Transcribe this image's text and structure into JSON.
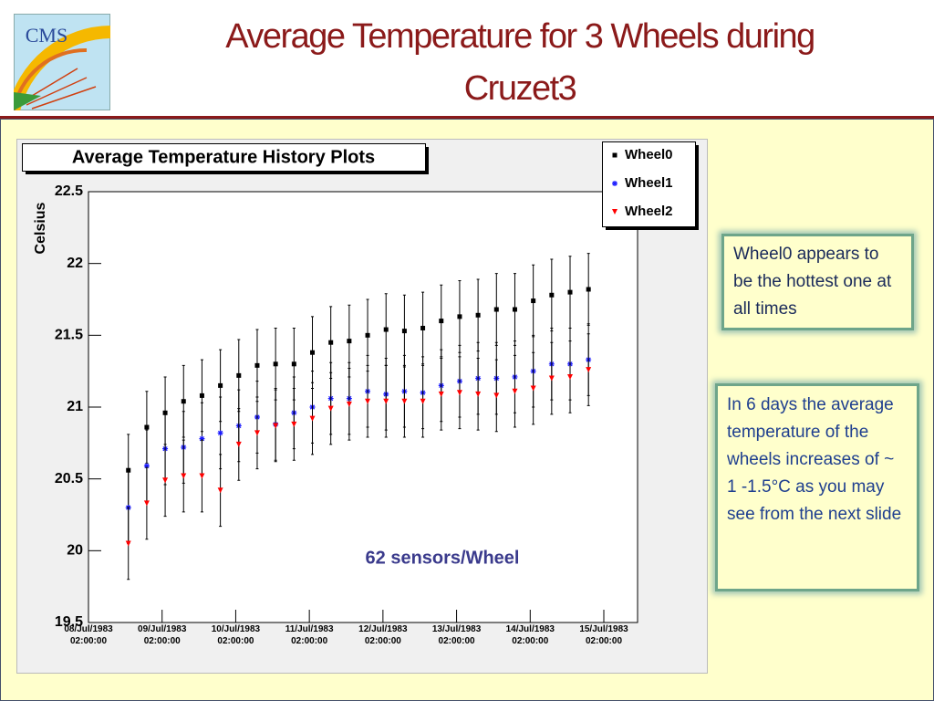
{
  "logo": "CMS",
  "title": "Average Temperature for 3 Wheels during Cruzet3",
  "chart_data": {
    "type": "errorbar",
    "title": "Average Temperature History Plots",
    "y_label": "Celsius",
    "annotation": "62 sensors/Wheel",
    "x": [
      "1983-07-08T15:00",
      "1983-07-08T21:00",
      "1983-07-09T03:00",
      "1983-07-09T09:00",
      "1983-07-09T15:00",
      "1983-07-09T21:00",
      "1983-07-10T03:00",
      "1983-07-10T09:00",
      "1983-07-10T15:00",
      "1983-07-10T21:00",
      "1983-07-11T03:00",
      "1983-07-11T09:00",
      "1983-07-11T15:00",
      "1983-07-11T21:00",
      "1983-07-12T03:00",
      "1983-07-12T09:00",
      "1983-07-12T15:00",
      "1983-07-12T21:00",
      "1983-07-13T03:00",
      "1983-07-13T09:00",
      "1983-07-13T15:00",
      "1983-07-13T21:00",
      "1983-07-14T03:00",
      "1983-07-14T09:00",
      "1983-07-14T15:00",
      "1983-07-14T21:00"
    ],
    "series": [
      {
        "name": "Wheel0",
        "color": "#000000",
        "marker": "square",
        "error": 0.25,
        "values": [
          20.56,
          20.86,
          20.96,
          21.04,
          21.08,
          21.15,
          21.22,
          21.29,
          21.3,
          21.3,
          21.38,
          21.45,
          21.46,
          21.5,
          21.54,
          21.53,
          21.55,
          21.6,
          21.63,
          21.64,
          21.68,
          21.68,
          21.74,
          21.78,
          21.8,
          21.82
        ]
      },
      {
        "name": "Wheel1",
        "color": "#1a1aff",
        "marker": "asterisk",
        "error": 0.25,
        "values": [
          20.3,
          20.59,
          20.71,
          20.72,
          20.78,
          20.82,
          20.87,
          20.93,
          20.88,
          20.96,
          21.0,
          21.06,
          21.06,
          21.11,
          21.09,
          21.11,
          21.1,
          21.15,
          21.18,
          21.2,
          21.2,
          21.21,
          21.25,
          21.3,
          21.3,
          21.33
        ]
      },
      {
        "name": "Wheel2",
        "color": "#ff0000",
        "marker": "triangle-down",
        "error": 0.25,
        "values": [
          20.05,
          20.33,
          20.49,
          20.52,
          20.52,
          20.42,
          20.74,
          20.82,
          20.87,
          20.88,
          20.92,
          20.99,
          21.02,
          21.04,
          21.04,
          21.04,
          21.04,
          21.09,
          21.1,
          21.09,
          21.08,
          21.11,
          21.13,
          21.2,
          21.21,
          21.26
        ]
      }
    ],
    "xlim": [
      "1983-07-08T02:00",
      "1983-07-15T13:00"
    ],
    "xticks": [
      {
        "value": "1983-07-08T02:00",
        "label": "08/Jul/1983\n02:00:00"
      },
      {
        "value": "1983-07-09T02:00",
        "label": "09/Jul/1983\n02:00:00"
      },
      {
        "value": "1983-07-10T02:00",
        "label": "10/Jul/1983\n02:00:00"
      },
      {
        "value": "1983-07-11T02:00",
        "label": "11/Jul/1983\n02:00:00"
      },
      {
        "value": "1983-07-12T02:00",
        "label": "12/Jul/1983\n02:00:00"
      },
      {
        "value": "1983-07-13T02:00",
        "label": "13/Jul/1983\n02:00:00"
      },
      {
        "value": "1983-07-14T02:00",
        "label": "14/Jul/1983\n02:00:00"
      },
      {
        "value": "1983-07-15T02:00",
        "label": "15/Jul/1983\n02:00:00"
      }
    ],
    "ylim": [
      19.5,
      22.5
    ],
    "yticks": [
      19.5,
      20,
      20.5,
      21,
      21.5,
      22,
      22.5
    ],
    "legend": "top-right"
  },
  "notes": [
    "Wheel0 appears to be the hottest one at all times",
    "In  6 days the average temperature of the wheels increases of ~ 1 -1.5°C as you may see from the next slide"
  ]
}
